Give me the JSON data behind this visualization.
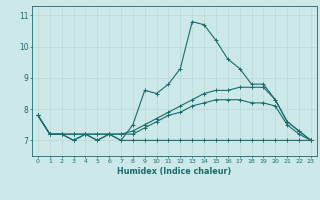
{
  "xlabel": "Humidex (Indice chaleur)",
  "background_color": "#cce8e8",
  "grid_color": "#b8d8d8",
  "line_color": "#1a6b6b",
  "xlim": [
    -0.5,
    23.5
  ],
  "ylim": [
    6.5,
    11.3
  ],
  "yticks": [
    7,
    8,
    9,
    10,
    11
  ],
  "xticks": [
    0,
    1,
    2,
    3,
    4,
    5,
    6,
    7,
    8,
    9,
    10,
    11,
    12,
    13,
    14,
    15,
    16,
    17,
    18,
    19,
    20,
    21,
    22,
    23
  ],
  "series": [
    [
      7.8,
      7.2,
      7.2,
      7.0,
      7.2,
      7.0,
      7.2,
      7.0,
      7.5,
      8.6,
      8.5,
      8.8,
      9.3,
      10.8,
      10.7,
      10.2,
      9.6,
      9.3,
      8.8,
      8.8,
      8.3,
      7.6,
      7.3,
      7.0
    ],
    [
      7.8,
      7.2,
      7.2,
      7.0,
      7.2,
      7.0,
      7.2,
      7.0,
      7.0,
      7.0,
      7.0,
      7.0,
      7.0,
      7.0,
      7.0,
      7.0,
      7.0,
      7.0,
      7.0,
      7.0,
      7.0,
      7.0,
      7.0,
      7.0
    ],
    [
      7.8,
      7.2,
      7.2,
      7.2,
      7.2,
      7.2,
      7.2,
      7.2,
      7.3,
      7.5,
      7.7,
      7.9,
      8.1,
      8.3,
      8.5,
      8.6,
      8.6,
      8.7,
      8.7,
      8.7,
      8.3,
      7.6,
      7.3,
      7.0
    ],
    [
      7.8,
      7.2,
      7.2,
      7.2,
      7.2,
      7.2,
      7.2,
      7.2,
      7.2,
      7.4,
      7.6,
      7.8,
      7.9,
      8.1,
      8.2,
      8.3,
      8.3,
      8.3,
      8.2,
      8.2,
      8.1,
      7.5,
      7.2,
      7.0
    ]
  ]
}
